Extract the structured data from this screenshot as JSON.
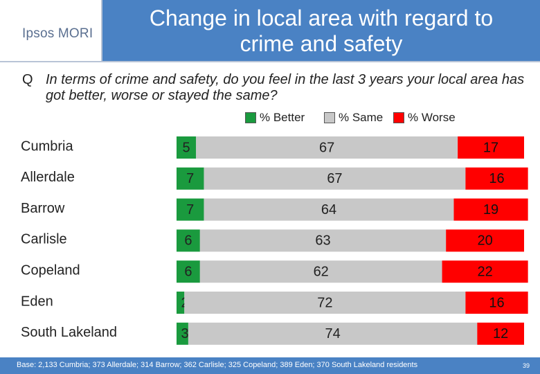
{
  "header": {
    "logo": "Ipsos MORI",
    "title_line1": "Change in local area with regard to",
    "title_line2": "crime and safety"
  },
  "question": {
    "marker": "Q",
    "text": "In terms of crime and safety, do you feel in the last 3 years your local area has got better, worse or stayed the same?"
  },
  "legend": {
    "items": [
      {
        "label": "% Better",
        "color": "#1a9a3e"
      },
      {
        "label": "% Same",
        "color": "#c8c8c8"
      },
      {
        "label": "% Worse",
        "color": "#ff0000"
      }
    ]
  },
  "chart_data": {
    "type": "bar",
    "orientation": "horizontal",
    "stacked": true,
    "categories": [
      "Cumbria",
      "Allerdale",
      "Barrow",
      "Carlisle",
      "Copeland",
      "Eden",
      "South Lakeland"
    ],
    "series": [
      {
        "name": "% Better",
        "color": "#1a9a3e",
        "values": [
          5,
          7,
          7,
          6,
          6,
          2,
          3
        ]
      },
      {
        "name": "% Same",
        "color": "#c8c8c8",
        "values": [
          67,
          67,
          64,
          63,
          62,
          72,
          74
        ]
      },
      {
        "name": "% Worse",
        "color": "#ff0000",
        "values": [
          17,
          16,
          19,
          20,
          22,
          16,
          12
        ]
      }
    ],
    "xlim": [
      0,
      89
    ],
    "legend_position": "top"
  },
  "footer": {
    "base_note": "Base: 2,133 Cumbria; 373 Allerdale; 314 Barrow; 362 Carlisle; 325 Copeland; 389 Eden; 370 South Lakeland residents",
    "page_number": "39"
  }
}
